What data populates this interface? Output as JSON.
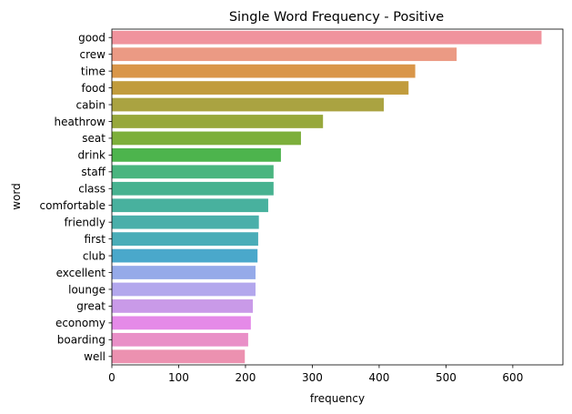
{
  "chart_data": {
    "type": "bar",
    "orientation": "horizontal",
    "title": "Single Word Frequency - Positive",
    "xlabel": "frequency",
    "ylabel": "word",
    "xlim": [
      0,
      675
    ],
    "xticks": [
      0,
      100,
      200,
      300,
      400,
      500,
      600
    ],
    "grid": false,
    "legend": "none",
    "categories": [
      "good",
      "crew",
      "time",
      "food",
      "cabin",
      "heathrow",
      "seat",
      "drink",
      "staff",
      "class",
      "comfortable",
      "friendly",
      "first",
      "club",
      "excellent",
      "lounge",
      "great",
      "economy",
      "boarding",
      "well"
    ],
    "values": [
      643,
      516,
      454,
      444,
      407,
      316,
      283,
      253,
      242,
      242,
      234,
      220,
      219,
      218,
      215,
      215,
      211,
      208,
      204,
      199
    ],
    "colors": [
      "#f0939d",
      "#eb9a84",
      "#d99649",
      "#c19c3d",
      "#aaa341",
      "#97a83c",
      "#7daf3b",
      "#4db44d",
      "#4ab57f",
      "#47b290",
      "#48b19e",
      "#4aafaa",
      "#4aadb8",
      "#4aa8cb",
      "#95aae9",
      "#b3a7ed",
      "#c99ae8",
      "#e58ae8",
      "#e98fc7",
      "#ec91b0"
    ]
  }
}
